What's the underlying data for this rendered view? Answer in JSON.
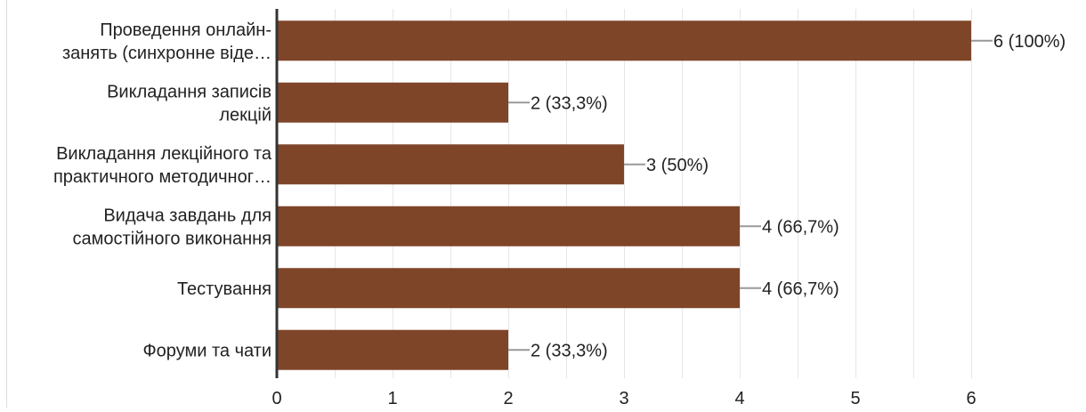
{
  "chart_data": {
    "type": "bar",
    "orientation": "horizontal",
    "categories": [
      [
        "Проведення онлайн-",
        "занять (синхронне віде…"
      ],
      [
        "Викладання записів",
        "лекцій"
      ],
      [
        "Викладання лекційного та",
        "практичного методичног…"
      ],
      [
        "Видача завдань для",
        "самостійного виконання"
      ],
      [
        "Тестування"
      ],
      [
        "Форуми та чати"
      ]
    ],
    "values": [
      6,
      2,
      3,
      4,
      4,
      2
    ],
    "data_labels": [
      "6 (100%)",
      "2 (33,3%)",
      "3 (50%)",
      "4 (66,7%)",
      "4 (66,7%)",
      "2 (33,3%)"
    ],
    "x_ticks": [
      "0",
      "1",
      "2",
      "3",
      "4",
      "5",
      "6"
    ],
    "xlim": [
      0,
      6
    ],
    "grid": true,
    "colors": {
      "bar": "#7f4528",
      "grid": "#e6e6e6",
      "axis": "#333333",
      "leader": "#999999",
      "text": "#222222"
    }
  }
}
